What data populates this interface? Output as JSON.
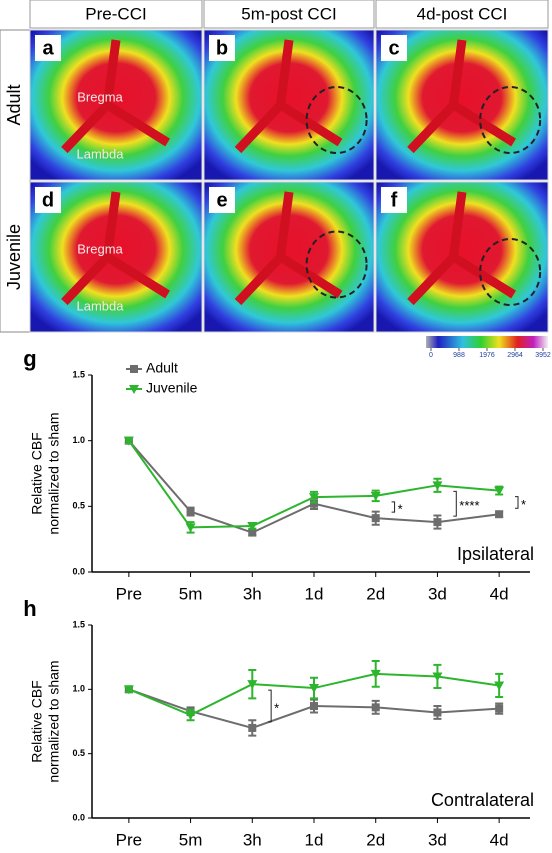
{
  "figure": {
    "column_headers": [
      "Pre-CCI",
      "5m-post CCI",
      "4d-post CCI"
    ],
    "row_labels": [
      "Adult",
      "Juvenile"
    ],
    "panel_letters": [
      "a",
      "b",
      "c",
      "d",
      "e",
      "f"
    ],
    "landmarks": [
      "Bregma",
      "Lambda",
      "Bregma",
      "Lambda"
    ],
    "colorbar_ticks": [
      0,
      988,
      1976,
      2964,
      3952
    ]
  },
  "chart_data": [
    {
      "type": "line",
      "panel_letter": "g",
      "label": "Ipsilateral",
      "ylabel": [
        "Relative CBF",
        "normalized to sham"
      ],
      "categories": [
        "Pre",
        "5m",
        "3h",
        "1d",
        "2d",
        "3d",
        "4d"
      ],
      "series": [
        {
          "name": "Adult",
          "color": "#6d6d6d",
          "marker": "square",
          "values": [
            1.0,
            0.46,
            0.3,
            0.52,
            0.41,
            0.38,
            0.44
          ],
          "errors": [
            0.02,
            0.03,
            0.02,
            0.04,
            0.05,
            0.05,
            0.02
          ]
        },
        {
          "name": "Juvenile",
          "color": "#2db52d",
          "marker": "triangle",
          "values": [
            1.0,
            0.34,
            0.35,
            0.57,
            0.58,
            0.66,
            0.62
          ],
          "errors": [
            0.02,
            0.04,
            0.02,
            0.04,
            0.04,
            0.05,
            0.03
          ]
        }
      ],
      "ylim": [
        0,
        1.5
      ],
      "yticks": [
        {
          "value": 0,
          "label": "0.0"
        },
        0.5,
        {
          "value": 1,
          "label": "1.0"
        },
        1.5
      ],
      "legend": "top-left",
      "annotations": [
        {
          "text": "*",
          "category": "2d"
        },
        {
          "text": "****",
          "category": "3d"
        },
        {
          "text": "*",
          "category": "4d"
        }
      ]
    },
    {
      "type": "line",
      "panel_letter": "h",
      "label": "Contralateral",
      "ylabel": [
        "Relative CBF",
        "normalized to sham"
      ],
      "categories": [
        "Pre",
        "5m",
        "3h",
        "1d",
        "2d",
        "3d",
        "4d"
      ],
      "series": [
        {
          "color": "#6d6d6d",
          "marker": "square",
          "values": [
            1.0,
            0.83,
            0.7,
            0.87,
            0.86,
            0.82,
            0.85
          ],
          "errors": [
            0.02,
            0.03,
            0.06,
            0.05,
            0.05,
            0.05,
            0.04
          ]
        },
        {
          "color": "#2db52d",
          "marker": "triangle",
          "values": [
            1.0,
            0.8,
            1.04,
            1.01,
            1.12,
            1.1,
            1.03
          ],
          "errors": [
            0.02,
            0.04,
            0.11,
            0.08,
            0.1,
            0.09,
            0.09
          ]
        }
      ],
      "ylim": [
        0,
        1.5
      ],
      "yticks": [
        {
          "value": 0,
          "label": "0.0"
        },
        0.5,
        {
          "value": 1,
          "label": "1.0"
        },
        1.5
      ],
      "annotations": [
        {
          "text": "*",
          "category": "3h"
        }
      ]
    }
  ]
}
